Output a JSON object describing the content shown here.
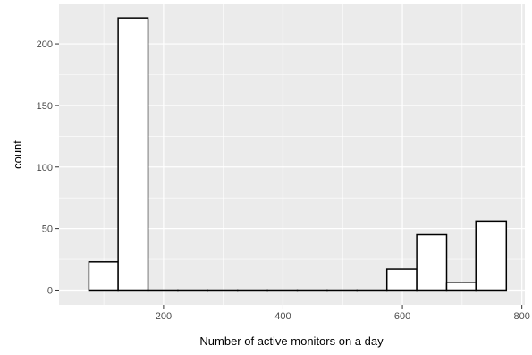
{
  "chart_data": {
    "type": "bar",
    "subtype": "histogram",
    "xlabel": "Number of active monitors on a day",
    "ylabel": "count",
    "xlim": [
      25,
      805
    ],
    "ylim": [
      -12,
      232
    ],
    "x_ticks": [
      200,
      400,
      600,
      800
    ],
    "y_ticks": [
      0,
      50,
      100,
      150,
      200
    ],
    "x_tick_labels": [
      "200",
      "400",
      "600",
      "800"
    ],
    "y_tick_labels": [
      "0",
      "50",
      "100",
      "150",
      "200"
    ],
    "grid": true,
    "bins": [
      {
        "x0": 75,
        "x1": 124,
        "count": 23
      },
      {
        "x0": 124,
        "x1": 174,
        "count": 221
      },
      {
        "x0": 174,
        "x1": 224,
        "count": 0
      },
      {
        "x0": 224,
        "x1": 274,
        "count": 0
      },
      {
        "x0": 274,
        "x1": 324,
        "count": 0
      },
      {
        "x0": 324,
        "x1": 374,
        "count": 0
      },
      {
        "x0": 374,
        "x1": 424,
        "count": 0
      },
      {
        "x0": 424,
        "x1": 474,
        "count": 0
      },
      {
        "x0": 474,
        "x1": 524,
        "count": 0
      },
      {
        "x0": 524,
        "x1": 574,
        "count": 0
      },
      {
        "x0": 574,
        "x1": 624,
        "count": 17
      },
      {
        "x0": 624,
        "x1": 674,
        "count": 45
      },
      {
        "x0": 674,
        "x1": 723,
        "count": 6
      },
      {
        "x0": 723,
        "x1": 774,
        "count": 56
      }
    ],
    "colors": {
      "panel": "#ebebeb",
      "grid": "#ffffff",
      "bar_fill": "#ffffff",
      "bar_stroke": "#000000"
    }
  }
}
